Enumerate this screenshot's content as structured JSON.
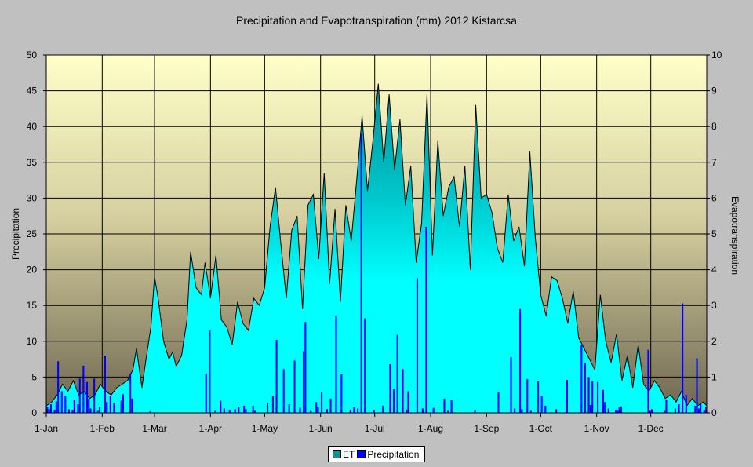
{
  "chart_data": {
    "type": "area+bar",
    "title": "Precipitation and Evapotranspiration (mm) 2012 Kistarcsa",
    "ylabel_left": "Precipitation",
    "ylabel_right": "Evapotranspiration",
    "ylim_left": [
      0,
      50
    ],
    "ylim_right": [
      0,
      10
    ],
    "yticks_left": [
      "0",
      "5",
      "10",
      "15",
      "20",
      "25",
      "30",
      "35",
      "40",
      "45",
      "50"
    ],
    "yticks_right": [
      "0",
      "1",
      "2",
      "3",
      "4",
      "5",
      "6",
      "7",
      "8",
      "9",
      "10"
    ],
    "xlim_days": [
      0,
      366
    ],
    "xticks": [
      {
        "label": "1-Jan",
        "day": 0
      },
      {
        "label": "1-Feb",
        "day": 31
      },
      {
        "label": "1-Mar",
        "day": 60
      },
      {
        "label": "1-Apr",
        "day": 91
      },
      {
        "label": "1-May",
        "day": 121
      },
      {
        "label": "1-Jun",
        "day": 152
      },
      {
        "label": "1-Jul",
        "day": 182
      },
      {
        "label": "1-Aug",
        "day": 213
      },
      {
        "label": "1-Sep",
        "day": 244
      },
      {
        "label": "1-Oct",
        "day": 274
      },
      {
        "label": "1-Nov",
        "day": 305
      },
      {
        "label": "1-Dec",
        "day": 335
      }
    ],
    "legend": [
      "ET",
      "Precipitation"
    ],
    "colors": {
      "et_fill": "#00ffff",
      "et_fill_dark": "#00a0a0",
      "et_line": "#000000",
      "precip": "#0000ff"
    },
    "et_series": {
      "name": "ET",
      "axis": "right",
      "days": [
        0,
        3,
        6,
        9,
        12,
        15,
        18,
        21,
        24,
        27,
        30,
        33,
        36,
        39,
        42,
        45,
        48,
        50,
        53,
        55,
        58,
        60,
        62,
        65,
        68,
        70,
        72,
        75,
        78,
        80,
        83,
        86,
        88,
        91,
        94,
        97,
        100,
        103,
        106,
        109,
        112,
        115,
        118,
        121,
        124,
        127,
        130,
        133,
        136,
        139,
        142,
        145,
        148,
        151,
        154,
        157,
        160,
        163,
        166,
        169,
        172,
        175,
        178,
        181,
        184,
        187,
        190,
        193,
        196,
        199,
        202,
        205,
        208,
        211,
        214,
        217,
        220,
        223,
        226,
        229,
        232,
        235,
        238,
        241,
        244,
        247,
        250,
        253,
        256,
        259,
        262,
        265,
        268,
        271,
        274,
        277,
        280,
        283,
        286,
        289,
        292,
        295,
        298,
        301,
        304,
        307,
        310,
        313,
        316,
        319,
        322,
        325,
        328,
        331,
        334,
        337,
        340,
        343,
        346,
        349,
        352,
        355,
        358,
        361,
        364,
        366
      ],
      "values": [
        0.2,
        0.3,
        0.5,
        0.8,
        0.6,
        0.9,
        0.5,
        0.6,
        0.4,
        0.5,
        0.8,
        0.6,
        0.5,
        0.7,
        0.8,
        0.9,
        1.2,
        1.8,
        0.7,
        1.4,
        2.4,
        3.8,
        3.2,
        2.0,
        1.5,
        1.7,
        1.3,
        1.6,
        2.6,
        4.5,
        3.5,
        3.3,
        4.2,
        3.2,
        4.4,
        2.6,
        2.4,
        1.9,
        3.1,
        2.5,
        2.3,
        3.2,
        3.0,
        3.5,
        5.2,
        6.3,
        4.7,
        3.2,
        5.1,
        5.5,
        2.9,
        5.8,
        6.1,
        4.3,
        6.7,
        3.6,
        5.7,
        3.1,
        5.8,
        4.8,
        6.5,
        8.3,
        6.2,
        7.6,
        9.2,
        7.0,
        8.9,
        6.8,
        8.2,
        5.8,
        6.9,
        4.2,
        5.3,
        8.9,
        4.4,
        7.6,
        5.5,
        6.3,
        6.6,
        5.2,
        6.9,
        4.0,
        8.6,
        6.0,
        6.1,
        5.6,
        4.6,
        4.2,
        6.1,
        4.8,
        5.2,
        4.1,
        7.3,
        4.9,
        3.3,
        2.7,
        3.8,
        3.7,
        3.2,
        2.5,
        3.4,
        2.1,
        1.8,
        1.5,
        1.2,
        3.3,
        2.0,
        1.4,
        2.2,
        0.9,
        1.6,
        0.7,
        1.9,
        0.8,
        0.6,
        0.9,
        0.7,
        0.4,
        0.5,
        0.3,
        0.6,
        0.2,
        0.4,
        0.2,
        0.3,
        0.2
      ]
    },
    "precip_series": {
      "name": "Precipitation",
      "axis": "left",
      "days": [
        0,
        1,
        2,
        4,
        5,
        6,
        8,
        10,
        12,
        14,
        15,
        17,
        18,
        20,
        22,
        23,
        24,
        26,
        28,
        29,
        32,
        33,
        35,
        37,
        41,
        42,
        46,
        47,
        57,
        88,
        90,
        93,
        96,
        98,
        101,
        104,
        106,
        109,
        110,
        114,
        115,
        122,
        125,
        127,
        131,
        134,
        137,
        140,
        142,
        143,
        146,
        149,
        150,
        152,
        155,
        157,
        160,
        163,
        168,
        170,
        172,
        174,
        176,
        181,
        186,
        190,
        192,
        194,
        197,
        199,
        200,
        205,
        208,
        210,
        214,
        220,
        222,
        224,
        237,
        250,
        257,
        259,
        262,
        263,
        266,
        268,
        272,
        274,
        276,
        282,
        288,
        296,
        298,
        300,
        301,
        302,
        305,
        308,
        309,
        311,
        315,
        316,
        317,
        318,
        333,
        334,
        335,
        342,
        343,
        348,
        350,
        352,
        354,
        359,
        360,
        361,
        362,
        364,
        365
      ],
      "values": [
        0.8,
        0.5,
        1.2,
        0.4,
        1.6,
        7.2,
        3.0,
        2.3,
        0.5,
        0.4,
        1.8,
        1.2,
        4.8,
        6.6,
        4.3,
        2.0,
        0.6,
        4.8,
        0.3,
        0.8,
        8.0,
        1.5,
        2.4,
        1.4,
        1.7,
        2.6,
        5.5,
        2.0,
        0.2,
        5.5,
        11.5,
        0.3,
        1.7,
        0.6,
        0.4,
        0.5,
        0.8,
        1.0,
        0.5,
        1.0,
        0.3,
        1.4,
        2.4,
        10.2,
        6.1,
        1.2,
        7.3,
        0.7,
        8.6,
        12.7,
        0.3,
        1.5,
        0.8,
        2.9,
        0.5,
        2.0,
        13.5,
        5.4,
        0.4,
        0.8,
        0.6,
        39.0,
        13.2,
        0.4,
        1.0,
        6.8,
        3.3,
        10.9,
        6.1,
        0.4,
        3.0,
        18.8,
        0.6,
        26.0,
        0.7,
        2.0,
        0.3,
        1.8,
        0.4,
        2.9,
        7.8,
        0.6,
        14.5,
        0.5,
        4.7,
        0.3,
        4.4,
        2.4,
        1.0,
        0.5,
        4.6,
        9.5,
        7.0,
        5.0,
        1.1,
        4.4,
        4.3,
        3.2,
        1.5,
        0.6,
        0.4,
        0.3,
        0.8,
        0.9,
        8.8,
        0.3,
        0.5,
        0.3,
        1.8,
        0.6,
        1.2,
        15.3,
        2.5,
        1.0,
        7.6,
        0.6,
        1.3,
        0.4,
        0.8
      ]
    }
  }
}
